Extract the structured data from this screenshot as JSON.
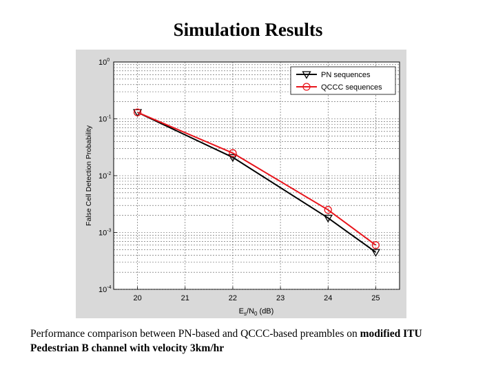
{
  "slide": {
    "title": "Simulation Results",
    "caption_prefix": "Performance comparison between PN-based and QCCC-based preambles on ",
    "caption_bold": "modified ITU Pedestrian B channel with velocity 3km/hr"
  },
  "chart_data": {
    "type": "line",
    "title": "",
    "xlabel": "Es/N0 (dB)",
    "xlabel_parts": {
      "main": "E",
      "sub1": "s",
      "mid": "/N",
      "sub2": "0",
      "unit": " (dB)"
    },
    "ylabel": "False Cell Detection Probability",
    "xlim": [
      19.5,
      25.5
    ],
    "ylim": [
      0.0001,
      1
    ],
    "yscale": "log",
    "grid": true,
    "legend_position": "top-right",
    "x_ticks": [
      "20",
      "21",
      "22",
      "23",
      "24",
      "25"
    ],
    "y_ticks": [
      {
        "base": "10",
        "exp": "0"
      },
      {
        "base": "10",
        "exp": "-1"
      },
      {
        "base": "10",
        "exp": "-2"
      },
      {
        "base": "10",
        "exp": "-3"
      },
      {
        "base": "10",
        "exp": "-4"
      }
    ],
    "x": [
      20,
      22,
      24,
      25
    ],
    "series": [
      {
        "name": "PN sequences",
        "values": [
          0.13,
          0.021,
          0.0018,
          0.00045
        ],
        "color": "#000000",
        "marker": "triangle-down"
      },
      {
        "name": "QCCC sequences",
        "values": [
          0.13,
          0.025,
          0.0025,
          0.0006
        ],
        "color": "#e8141b",
        "marker": "circle"
      }
    ]
  }
}
